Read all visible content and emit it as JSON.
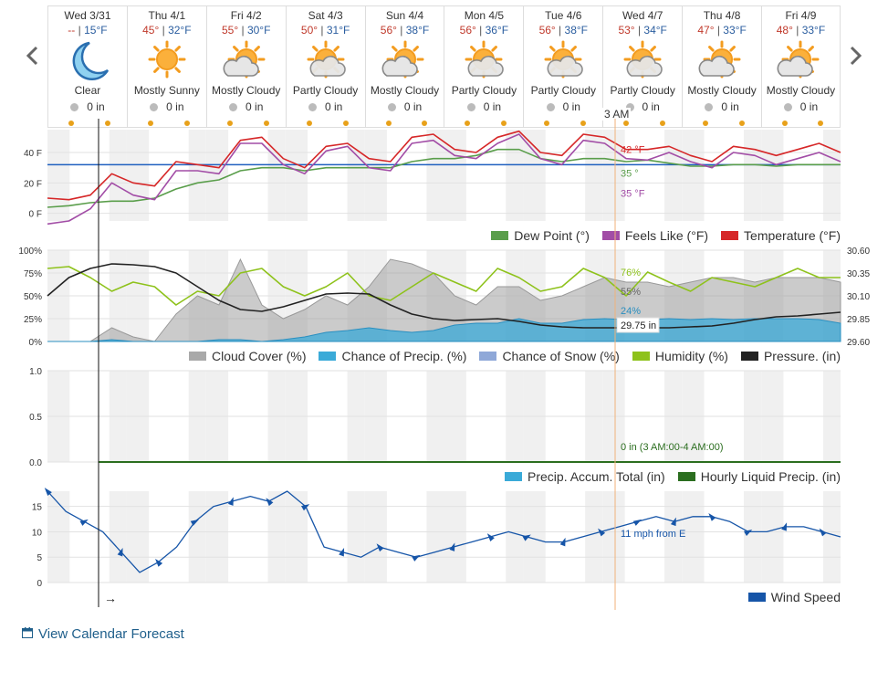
{
  "nav": {
    "prev": "previous-days",
    "next": "next-days"
  },
  "days": [
    {
      "name": "Wed 3/31",
      "hi": "--",
      "lo": "15°F",
      "cond": "Clear",
      "icon": "moon-icon",
      "precip": "0 in"
    },
    {
      "name": "Thu 4/1",
      "hi": "45°",
      "lo": "32°F",
      "cond": "Mostly Sunny",
      "icon": "sun-icon",
      "precip": "0 in"
    },
    {
      "name": "Fri 4/2",
      "hi": "55°",
      "lo": "30°F",
      "cond": "Mostly Cloudy",
      "icon": "mostly-cloudy-icon",
      "precip": "0 in"
    },
    {
      "name": "Sat 4/3",
      "hi": "50°",
      "lo": "31°F",
      "cond": "Partly Cloudy",
      "icon": "partly-cloudy-icon",
      "precip": "0 in"
    },
    {
      "name": "Sun 4/4",
      "hi": "56°",
      "lo": "38°F",
      "cond": "Mostly Cloudy",
      "icon": "mostly-cloudy-icon",
      "precip": "0 in"
    },
    {
      "name": "Mon 4/5",
      "hi": "56°",
      "lo": "36°F",
      "cond": "Partly Cloudy",
      "icon": "partly-cloudy-icon",
      "precip": "0 in"
    },
    {
      "name": "Tue 4/6",
      "hi": "56°",
      "lo": "38°F",
      "cond": "Partly Cloudy",
      "icon": "partly-cloudy-icon",
      "precip": "0 in"
    },
    {
      "name": "Wed 4/7",
      "hi": "53°",
      "lo": "34°F",
      "cond": "Partly Cloudy",
      "icon": "partly-cloudy-icon",
      "precip": "0 in"
    },
    {
      "name": "Thu 4/8",
      "hi": "47°",
      "lo": "33°F",
      "cond": "Mostly Cloudy",
      "icon": "mostly-cloudy-icon",
      "precip": "0 in"
    },
    {
      "name": "Fri 4/9",
      "hi": "48°",
      "lo": "33°F",
      "cond": "Mostly Cloudy",
      "icon": "mostly-cloudy-icon",
      "precip": "0 in"
    }
  ],
  "hover": {
    "time_label": "3 AM",
    "temp": "42 °F",
    "dew": "35 °",
    "feels": "35 °F",
    "humidity": "76%",
    "cloud": "55%",
    "precip_chance": "24%",
    "pressure": "29.75 in",
    "liquid": "0 in (3 AM:00-4 AM:00)",
    "wind": "11 mph from E"
  },
  "temp_panel": {
    "y_ticks": [
      "40 F",
      "20 F",
      "0 F"
    ],
    "legend": [
      "Dew Point (°)",
      "Feels Like (°F)",
      "Temperature (°F)"
    ]
  },
  "atmo_panel": {
    "y_ticks_left": [
      "100%",
      "75%",
      "50%",
      "25%",
      "0%"
    ],
    "y_ticks_right": [
      "30.60",
      "30.35",
      "30.10",
      "29.85",
      "29.60"
    ],
    "legend": [
      "Cloud Cover (%)",
      "Chance of Precip. (%)",
      "Chance of Snow (%)",
      "Humidity (%)",
      "Pressure. (in)"
    ]
  },
  "precip_panel": {
    "y_ticks": [
      "1.0",
      "0.5",
      "0.0"
    ],
    "legend": [
      "Precip. Accum. Total (in)",
      "Hourly Liquid Precip. (in)"
    ]
  },
  "wind_panel": {
    "y_ticks": [
      "15",
      "10",
      "5",
      "0"
    ],
    "legend": [
      "Wind Speed"
    ],
    "now_arrow": "→"
  },
  "colors": {
    "temperature": "#d62728",
    "feels_like": "#a24da6",
    "dew_point": "#5a9e4b",
    "cloud": "#a9a9a9",
    "precip": "#3aaad8",
    "snow": "#8fa8d8",
    "humidity": "#8ec21b",
    "pressure": "#222222",
    "liquid": "#2b6e1f",
    "wind": "#1655a8",
    "freezing": "#1f5fbf"
  },
  "chart_data": [
    {
      "type": "line",
      "title": "",
      "ylabel": "",
      "ylim": [
        -5,
        55
      ],
      "series": [
        {
          "name": "Temperature (°F)",
          "values": [
            10,
            9,
            12,
            26,
            20,
            18,
            34,
            32,
            30,
            48,
            50,
            36,
            30,
            44,
            46,
            36,
            34,
            50,
            52,
            42,
            40,
            50,
            54,
            40,
            38,
            52,
            50,
            42,
            42,
            44,
            38,
            34,
            44,
            42,
            38,
            42,
            46,
            40
          ]
        },
        {
          "name": "Feels Like (°F)",
          "values": [
            -7,
            -5,
            3,
            20,
            12,
            9,
            28,
            28,
            26,
            46,
            46,
            32,
            26,
            41,
            44,
            30,
            28,
            46,
            48,
            38,
            36,
            46,
            52,
            36,
            32,
            48,
            46,
            36,
            35,
            40,
            34,
            30,
            40,
            38,
            32,
            36,
            40,
            34
          ]
        },
        {
          "name": "Dew Point (°)",
          "values": [
            4,
            5,
            7,
            8,
            8,
            10,
            16,
            20,
            22,
            28,
            30,
            30,
            28,
            30,
            30,
            30,
            30,
            34,
            36,
            36,
            38,
            42,
            42,
            36,
            34,
            36,
            36,
            34,
            35,
            33,
            31,
            31,
            32,
            32,
            31,
            32,
            32,
            32
          ]
        }
      ]
    },
    {
      "type": "area",
      "title": "",
      "ylim": [
        0,
        100
      ],
      "series": [
        {
          "name": "Cloud Cover (%)",
          "values": [
            0,
            0,
            0,
            15,
            5,
            0,
            30,
            50,
            40,
            90,
            40,
            25,
            35,
            50,
            40,
            60,
            90,
            85,
            75,
            50,
            40,
            60,
            60,
            45,
            50,
            60,
            70,
            65,
            65,
            60,
            65,
            70,
            70,
            65,
            70,
            70,
            70,
            65
          ]
        },
        {
          "name": "Chance of Precip. (%)",
          "values": [
            0,
            0,
            0,
            2,
            0,
            0,
            0,
            0,
            2,
            2,
            0,
            2,
            5,
            10,
            12,
            15,
            12,
            10,
            12,
            18,
            20,
            20,
            25,
            20,
            20,
            24,
            25,
            24,
            24,
            25,
            24,
            25,
            24,
            25,
            25,
            25,
            24,
            20
          ]
        },
        {
          "name": "Humidity (%)",
          "values": [
            80,
            82,
            70,
            55,
            65,
            60,
            40,
            55,
            50,
            75,
            80,
            60,
            50,
            60,
            75,
            50,
            45,
            60,
            75,
            65,
            55,
            80,
            70,
            55,
            60,
            80,
            70,
            50,
            76,
            65,
            55,
            70,
            65,
            60,
            70,
            80,
            70,
            70
          ]
        },
        {
          "name": "Pressure. (in)",
          "values": [
            30.1,
            30.3,
            30.4,
            30.45,
            30.44,
            30.42,
            30.35,
            30.2,
            30.05,
            29.95,
            29.93,
            29.98,
            30.05,
            30.12,
            30.13,
            30.12,
            30.0,
            29.9,
            29.85,
            29.83,
            29.84,
            29.85,
            29.82,
            29.78,
            29.76,
            29.75,
            29.75,
            29.75,
            29.75,
            29.75,
            29.76,
            29.77,
            29.8,
            29.84,
            29.87,
            29.88,
            29.9,
            29.92
          ]
        }
      ]
    },
    {
      "type": "line",
      "title": "",
      "ylim": [
        0,
        1
      ],
      "series": [
        {
          "name": "Precip. Accum. Total (in)",
          "values": [
            0,
            0,
            0,
            0,
            0,
            0,
            0,
            0,
            0,
            0
          ]
        },
        {
          "name": "Hourly Liquid Precip. (in)",
          "values": [
            0,
            0,
            0,
            0,
            0,
            0,
            0,
            0,
            0,
            0
          ]
        }
      ]
    },
    {
      "type": "line",
      "title": "",
      "ylim": [
        0,
        18
      ],
      "series": [
        {
          "name": "Wind Speed",
          "values": [
            18,
            14,
            12,
            10,
            6,
            2,
            4,
            7,
            12,
            15,
            16,
            17,
            16,
            18,
            15,
            7,
            6,
            5,
            7,
            6,
            5,
            6,
            7,
            8,
            9,
            10,
            9,
            8,
            8,
            9,
            10,
            11,
            12,
            13,
            12,
            13,
            13,
            12,
            10,
            10,
            11,
            11,
            10,
            9
          ]
        }
      ]
    }
  ]
}
